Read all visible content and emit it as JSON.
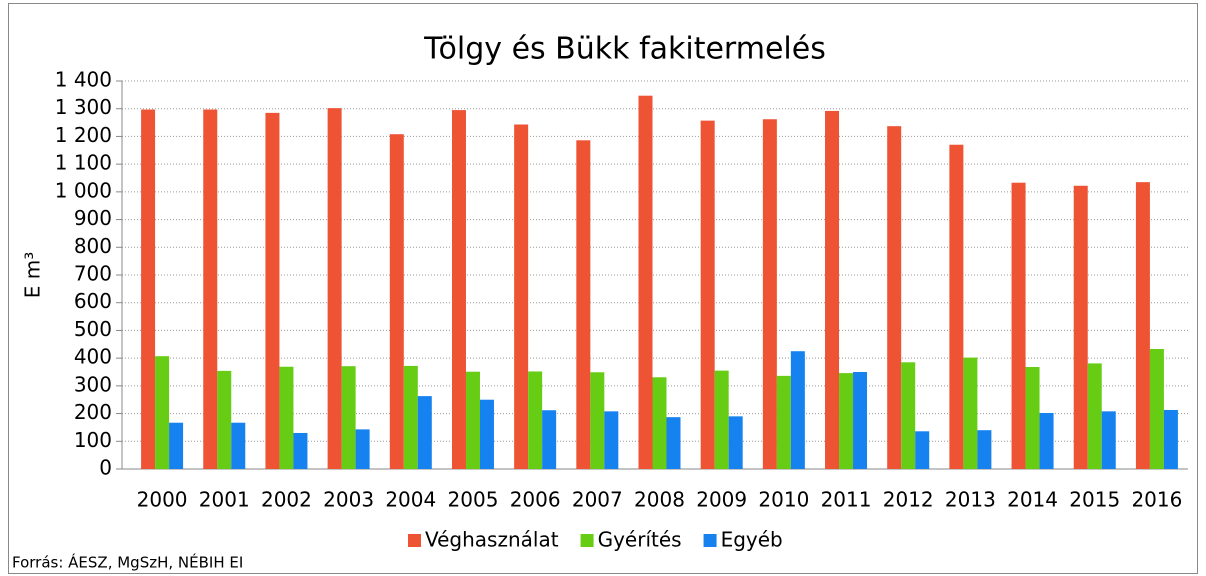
{
  "chart_data": {
    "type": "bar",
    "title": "Tölgy és Bükk fakitermelés",
    "y_label": "E m³",
    "source": "Forrás: ÁESZ, MgSzH, NÉBIH EI",
    "categories": [
      "2000",
      "2001",
      "2002",
      "2003",
      "2004",
      "2005",
      "2006",
      "2007",
      "2008",
      "2009",
      "2010",
      "2011",
      "2012",
      "2013",
      "2014",
      "2015",
      "2016"
    ],
    "series": [
      {
        "name": "Véghasználat",
        "color": "#ee5334",
        "values": [
          1297,
          1297,
          1285,
          1302,
          1208,
          1295,
          1243,
          1186,
          1347,
          1257,
          1262,
          1292,
          1237,
          1170,
          1033,
          1022,
          1035
        ]
      },
      {
        "name": "Gyérítés",
        "color": "#66cc14",
        "values": [
          407,
          354,
          369,
          371,
          372,
          351,
          352,
          349,
          331,
          355,
          336,
          346,
          385,
          402,
          368,
          381,
          433
        ]
      },
      {
        "name": "Egyéb",
        "color": "#1582f0",
        "values": [
          167,
          167,
          130,
          143,
          263,
          250,
          212,
          208,
          187,
          190,
          425,
          350,
          136,
          140,
          202,
          208,
          213
        ]
      }
    ],
    "ylim": [
      0,
      1400
    ],
    "yticks": [
      0,
      100,
      200,
      300,
      400,
      500,
      600,
      700,
      800,
      900,
      {
        "value": 1000,
        "label": "1 000"
      },
      {
        "value": 1100,
        "label": "1 100"
      },
      {
        "value": 1200,
        "label": "1 200"
      },
      {
        "value": 1300,
        "label": "1 300"
      },
      {
        "value": 1400,
        "label": "1 400"
      }
    ],
    "grid": true,
    "legend": "bottom"
  }
}
